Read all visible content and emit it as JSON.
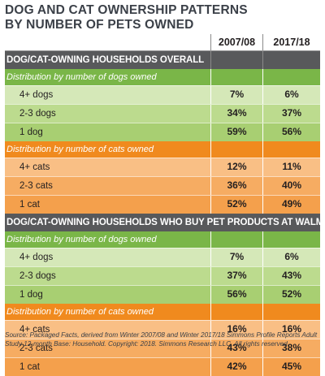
{
  "title": "DOG AND CAT OWNERSHIP PATTERNS BY NUMBER OF PETS OWNED",
  "columns": [
    "2007/08",
    "2017/18"
  ],
  "sections": [
    {
      "heading": "DOG/CAT-OWNING HOUSEHOLDS OVERALL",
      "groups": [
        {
          "label": "Distribution by number of dogs owned",
          "color": "#7ab648",
          "rows": [
            {
              "label": "4+ dogs",
              "v1": "7%",
              "v2": "6%"
            },
            {
              "label": "2-3 dogs",
              "v1": "34%",
              "v2": "37%"
            },
            {
              "label": "1 dog",
              "v1": "59%",
              "v2": "56%"
            }
          ]
        },
        {
          "label": "Distribution by number of cats owned",
          "color": "#f08a1e",
          "rows": [
            {
              "label": "4+ cats",
              "v1": "12%",
              "v2": "11%"
            },
            {
              "label": "2-3 cats",
              "v1": "36%",
              "v2": "40%"
            },
            {
              "label": "1 cat",
              "v1": "52%",
              "v2": "49%"
            }
          ]
        }
      ]
    },
    {
      "heading": "DOG/CAT-OWNING HOUSEHOLDS WHO BUY PET PRODUCTS AT WALMART",
      "groups": [
        {
          "label": "Distribution by number of dogs owned",
          "color": "#7ab648",
          "rows": [
            {
              "label": "4+ dogs",
              "v1": "7%",
              "v2": "6%"
            },
            {
              "label": "2-3 dogs",
              "v1": "37%",
              "v2": "43%"
            },
            {
              "label": "1 dog",
              "v1": "56%",
              "v2": "52%"
            }
          ]
        },
        {
          "label": "Distribution by number of cats owned",
          "color": "#f08a1e",
          "rows": [
            {
              "label": "4+ cats",
              "v1": "16%",
              "v2": "16%"
            },
            {
              "label": "2-3 cats",
              "v1": "43%",
              "v2": "38%"
            },
            {
              "label": "1 cat",
              "v1": "42%",
              "v2": "45%"
            }
          ]
        }
      ]
    }
  ],
  "source": "Source: Packaged Facts, derived from Winter 2007/08 and Winter 2017/18 Simmons Profile Reports Adult Study 12-month Base: Household. Copyright: 2018. Simmons Research LLC. All rights reserved."
}
